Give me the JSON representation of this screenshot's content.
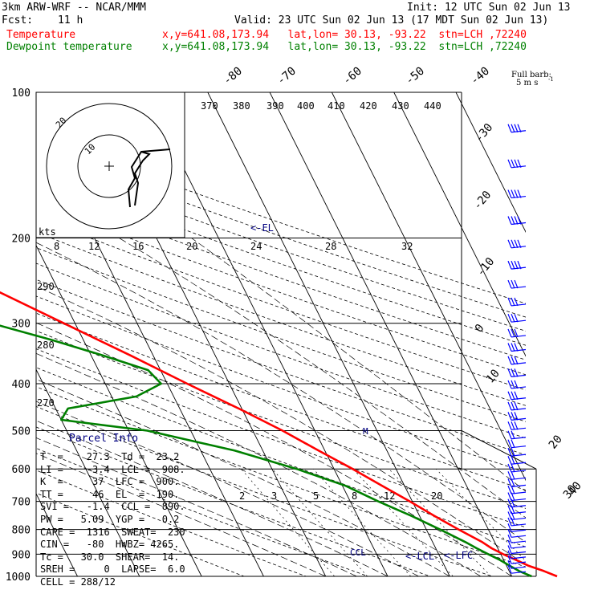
{
  "header": {
    "model": "3km ARW-WRF -- NCAR/MMM",
    "init": "Init: 12 UTC Sun 02 Jun 13",
    "fcst_label": "Fcst:",
    "fcst_value": "11 h",
    "valid": "Valid: 23 UTC Sun 02 Jun 13 (17 MDT Sun 02 Jun 13)",
    "temp_label": "Temperature",
    "temp_loc": "x,y=641.08,173.94   lat,lon= 30.13, -93.22  stn=LCH ,72240",
    "dew_label": "Dewpoint temperature",
    "dew_loc": "x,y=641.08,173.94   lat,lon= 30.13, -93.22  stn=LCH ,72240"
  },
  "colors": {
    "temperature": "#ff0000",
    "dewpoint": "#008000",
    "barbs": "#0000ff",
    "annotations": "#000080"
  },
  "labels": {
    "full_barb": "Full barb:",
    "full_barb_unit": "5 m s",
    "kts": "kts",
    "el_marker": "<-EL",
    "lcl_marker": "<-LCL",
    "lfc_marker": "<-LFC",
    "ccl_marker": "CCL",
    "wind_marker": "M",
    "hodo_ring_10": "10",
    "hodo_ring_20": "20"
  },
  "pressure_levels": [
    "100",
    "200",
    "300",
    "400",
    "500",
    "600",
    "700",
    "800",
    "900",
    "1000"
  ],
  "isotherm_top_labels": [
    "-80",
    "-70",
    "-60",
    "-50",
    "-40"
  ],
  "isotherm_right_labels": [
    "-30",
    "-20",
    "-10",
    "0",
    "10",
    "20",
    "30",
    "40"
  ],
  "theta_labels": [
    "370",
    "380",
    "390",
    "400",
    "410",
    "420",
    "430",
    "440"
  ],
  "dry_adiabat_left_labels": [
    "290",
    "280",
    "270"
  ],
  "mixing_ratio_top_labels": [
    "8",
    "12",
    "16",
    "20",
    "24",
    "28",
    "32"
  ],
  "mixing_ratio_low_labels": [
    "2",
    "3",
    "5",
    "8",
    "12",
    "20"
  ],
  "parcel_info": {
    "title": "Parcel Info",
    "rows": [
      "T  =    27.3  Td =  23.2",
      "LI =    -3.4  LCL =  908.",
      "K  =     37  LFC =  900.",
      "TT =     46  EL  =  190.",
      "SVI =   -1.4  CCL =  890.",
      "PW =   5.09  YGP =   0.2",
      "CAPE =  1316  SWEAT=  230",
      "CIN =   -80  HWBZ= 4265.",
      "Tc =   30.0  SHEAR=  14.",
      "SREH =     0  LAPSE=  6.0",
      "CELL = 288/12"
    ]
  },
  "chart_data": {
    "type": "line",
    "title": "",
    "xlabel": "",
    "ylabel": "",
    "y_axis": "pressure (hPa), log scale",
    "ylim": [
      1000,
      100
    ],
    "series": [
      {
        "name": "Temperature",
        "pressure": [
          1000,
          975,
          950,
          925,
          900,
          875,
          850,
          800,
          750,
          700,
          650,
          600,
          550,
          500,
          450,
          400,
          350,
          300,
          250,
          200,
          175,
          150,
          125,
          100
        ],
        "values": [
          27.3,
          25.6,
          23.5,
          22.0,
          20.4,
          19.0,
          18.0,
          15.2,
          12.4,
          9.6,
          6.4,
          3.0,
          -1.0,
          -5.2,
          -10.5,
          -16.8,
          -23.6,
          -31.8,
          -41.5,
          -52.0,
          -58.8,
          -64.5,
          -68.6,
          -71.0
        ]
      },
      {
        "name": "Dewpoint temperature",
        "pressure": [
          1000,
          975,
          950,
          925,
          900,
          875,
          850,
          800,
          750,
          700,
          650,
          600,
          550,
          500,
          475,
          450,
          425,
          400,
          375,
          350,
          325,
          300,
          250,
          200,
          175,
          150,
          125,
          100
        ],
        "values": [
          23.2,
          21.6,
          20.5,
          19.4,
          18.0,
          16.6,
          15.3,
          12.2,
          8.7,
          4.5,
          0.5,
          -6.0,
          -14.5,
          -27.0,
          -40.0,
          -38.0,
          -26.0,
          -21.0,
          -22.0,
          -28.0,
          -35.0,
          -43.5,
          -56.0,
          -67.0,
          -74.0,
          -80.0,
          -82.0,
          -82.5
        ]
      }
    ],
    "hodograph": {
      "units": "kts",
      "rings": [
        10,
        20
      ],
      "u": [
        0.0,
        4.0,
        6.0,
        5.0,
        7.0,
        10.0,
        14.0,
        20.0
      ],
      "v": [
        -8.0,
        -7.5,
        -2.0,
        0.5,
        3.0,
        4.0,
        5.5,
        7.0
      ]
    }
  }
}
